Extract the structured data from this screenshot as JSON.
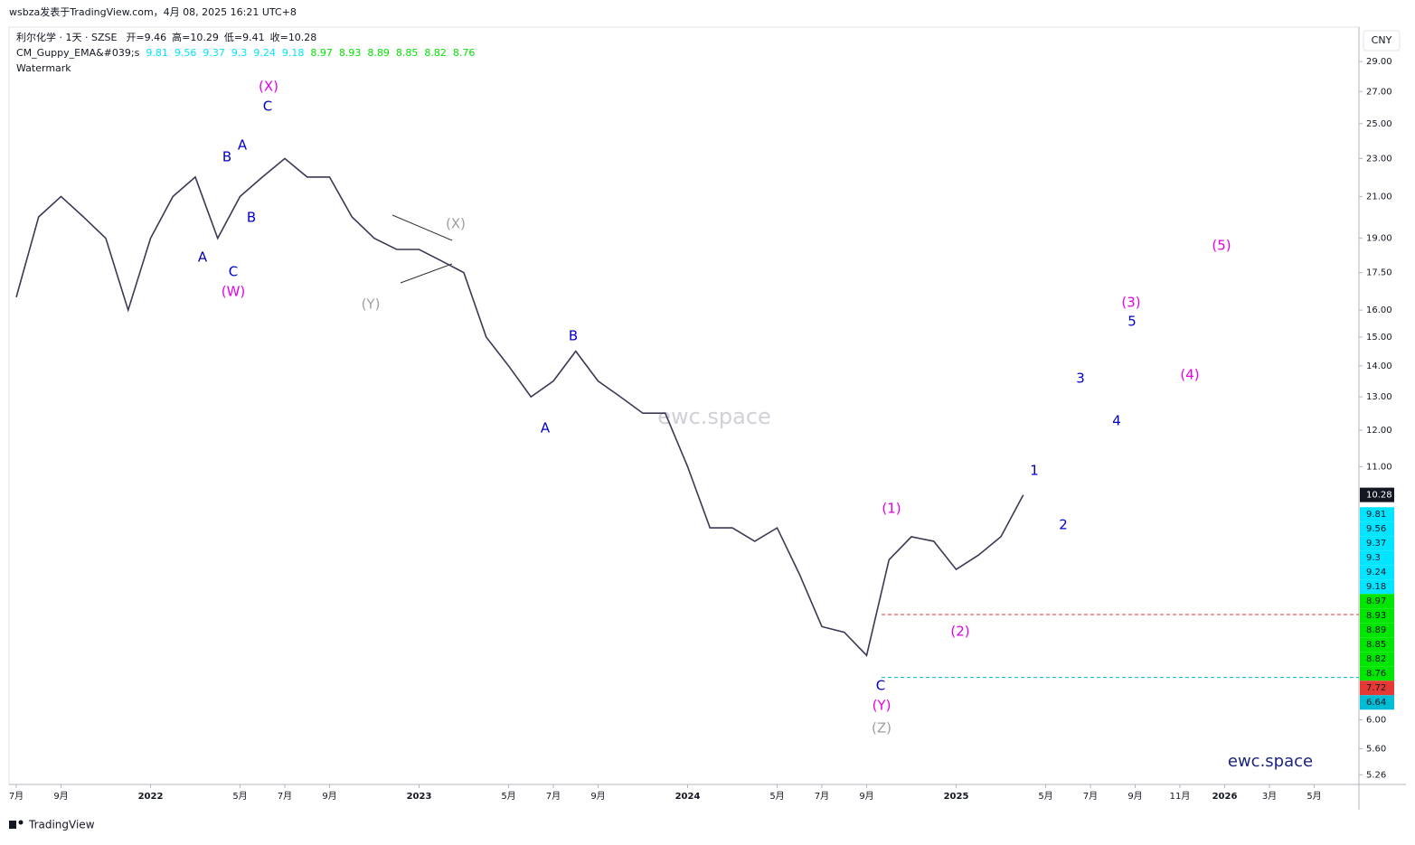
{
  "header": {
    "title": "wsbza发表于TradingView.com，4月 08, 2025 16:21 UTC+8"
  },
  "legend": {
    "symbol": "利尔化学 · 1天 · SZSE",
    "ohlc": [
      {
        "label": "开=",
        "value": 9.46
      },
      {
        "label": "高=",
        "value": 10.29
      },
      {
        "label": "低=",
        "value": 9.41
      },
      {
        "label": "收=",
        "value": 10.28
      }
    ],
    "indicator": {
      "name": "CM_Guppy_EMA&#039;s",
      "fast": {
        "color": "#00e5ff",
        "values": [
          9.81,
          9.56,
          9.37,
          9.3,
          9.24,
          9.18
        ]
      },
      "slow": {
        "color": "#00e600",
        "values": [
          8.97,
          8.93,
          8.89,
          8.85,
          8.82,
          8.76
        ]
      }
    },
    "watermark": "Watermark"
  },
  "watermarks": [
    "ewc.space",
    "ewc.space"
  ],
  "currency": "CNY",
  "footer": "TradingView",
  "annotations": [
    {
      "text": "(X)"
    },
    {
      "text": "C"
    },
    {
      "text": "A"
    },
    {
      "text": "B"
    },
    {
      "text": "B"
    },
    {
      "text": "A"
    },
    {
      "text": "C"
    },
    {
      "text": "(W)"
    },
    {
      "text": "(X)"
    },
    {
      "text": "(Y)"
    },
    {
      "text": "B"
    },
    {
      "text": "A"
    },
    {
      "text": "(1)"
    },
    {
      "text": "(2)"
    },
    {
      "text": "C"
    },
    {
      "text": "(Y)"
    },
    {
      "text": "(Z)"
    },
    {
      "text": "1"
    },
    {
      "text": "2"
    },
    {
      "text": "3"
    },
    {
      "text": "4"
    },
    {
      "text": "5"
    },
    {
      "text": "(3)"
    },
    {
      "text": "(4)"
    },
    {
      "text": "(5)"
    }
  ],
  "chart_data": {
    "type": "line",
    "log_scale": true,
    "grid": false,
    "x": [
      "2021-07",
      "2021-08",
      "2021-09",
      "2021-10",
      "2021-11",
      "2021-12",
      "2022-01",
      "2022-02",
      "2022-03",
      "2022-04",
      "2022-05",
      "2022-06",
      "2022-07",
      "2022-08",
      "2022-09",
      "2022-10",
      "2022-11",
      "2022-12",
      "2023-01",
      "2023-02",
      "2023-03",
      "2023-04",
      "2023-05",
      "2023-06",
      "2023-07",
      "2023-08",
      "2023-09",
      "2023-10",
      "2023-11",
      "2023-12",
      "2024-01",
      "2024-02",
      "2024-03",
      "2024-04",
      "2024-05",
      "2024-06",
      "2024-07",
      "2024-08",
      "2024-09",
      "2024-10",
      "2024-11",
      "2024-12",
      "2025-01",
      "2025-02",
      "2025-03",
      "2025-04"
    ],
    "series": [
      {
        "name": "利尔化学",
        "color": "#3a3a55",
        "values": [
          16.5,
          20,
          21,
          20,
          19,
          16,
          19,
          21,
          22,
          19,
          21,
          22,
          23,
          22,
          22,
          20,
          19,
          18.5,
          18.5,
          18,
          17.5,
          15,
          14,
          13,
          13.5,
          14.5,
          13.5,
          13,
          12.5,
          12.5,
          11,
          9.5,
          9.5,
          9.2,
          9.5,
          8.5,
          7.5,
          7.4,
          7.0,
          8.8,
          9.3,
          9.2,
          8.6,
          8.9,
          9.3,
          10.28
        ]
      }
    ],
    "last_color": "#131722",
    "hlines": [
      {
        "value": 7.72,
        "color": "#e53935"
      },
      {
        "value": 6.64,
        "color": "#00bcd4"
      }
    ],
    "xlim": [
      "2021-07",
      "2026-07"
    ],
    "xticks": [
      {
        "value": "2021-07",
        "label": "7月"
      },
      {
        "value": "2021-09",
        "label": "9月"
      },
      {
        "value": "2022-01",
        "label": "2022"
      },
      {
        "value": "2022-05",
        "label": "5月"
      },
      {
        "value": "2022-07",
        "label": "7月"
      },
      {
        "value": "2022-09",
        "label": "9月"
      },
      {
        "value": "2023-01",
        "label": "2023"
      },
      {
        "value": "2023-05",
        "label": "5月"
      },
      {
        "value": "2023-07",
        "label": "7月"
      },
      {
        "value": "2023-09",
        "label": "9月"
      },
      {
        "value": "2024-01",
        "label": "2024"
      },
      {
        "value": "2024-05",
        "label": "5月"
      },
      {
        "value": "2024-07",
        "label": "7月"
      },
      {
        "value": "2024-09",
        "label": "9月"
      },
      {
        "value": "2025-01",
        "label": "2025"
      },
      {
        "value": "2025-05",
        "label": "5月"
      },
      {
        "value": "2025-07",
        "label": "7月"
      },
      {
        "value": "2025-09",
        "label": "9月"
      },
      {
        "value": "2025-11",
        "label": "11月"
      },
      {
        "value": "2026-01",
        "label": "2026"
      },
      {
        "value": "2026-03",
        "label": "3月"
      },
      {
        "value": "2026-05",
        "label": "5月"
      }
    ],
    "ylim": [
      5.14,
      31.5
    ],
    "yticks": [
      {
        "value": 29,
        "label": "29.00"
      },
      {
        "value": 27,
        "label": "27.00"
      },
      {
        "value": 25,
        "label": "25.00"
      },
      {
        "value": 23,
        "label": "23.00"
      },
      {
        "value": 21,
        "label": "21.00"
      },
      {
        "value": 19,
        "label": "19.00"
      },
      {
        "value": 17.5,
        "label": "17.50"
      },
      {
        "value": 16,
        "label": "16.00"
      },
      {
        "value": 15,
        "label": "15.00"
      },
      {
        "value": 14,
        "label": "14.00"
      },
      {
        "value": 13,
        "label": "13.00"
      },
      {
        "value": 12,
        "label": "12.00"
      },
      {
        "value": 11,
        "label": "11.00"
      },
      {
        "value": 6,
        "label": "6.00"
      },
      {
        "value": 5.6,
        "label": "5.60"
      },
      {
        "value": 5.26,
        "label": "5.26"
      }
    ]
  }
}
